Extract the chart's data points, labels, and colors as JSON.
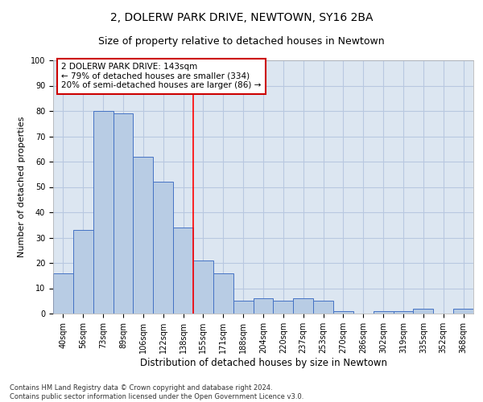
{
  "title": "2, DOLERW PARK DRIVE, NEWTOWN, SY16 2BA",
  "subtitle": "Size of property relative to detached houses in Newtown",
  "xlabel": "Distribution of detached houses by size in Newtown",
  "ylabel": "Number of detached properties",
  "categories": [
    "40sqm",
    "56sqm",
    "73sqm",
    "89sqm",
    "106sqm",
    "122sqm",
    "138sqm",
    "155sqm",
    "171sqm",
    "188sqm",
    "204sqm",
    "220sqm",
    "237sqm",
    "253sqm",
    "270sqm",
    "286sqm",
    "302sqm",
    "319sqm",
    "335sqm",
    "352sqm",
    "368sqm"
  ],
  "values": [
    16,
    33,
    80,
    79,
    62,
    52,
    34,
    21,
    16,
    5,
    6,
    5,
    6,
    5,
    1,
    0,
    1,
    1,
    2,
    0,
    2
  ],
  "bar_color": "#b8cce4",
  "bar_edge_color": "#4472c4",
  "property_line_x": 6.5,
  "annotation_line1": "2 DOLERW PARK DRIVE: 143sqm",
  "annotation_line2": "← 79% of detached houses are smaller (334)",
  "annotation_line3": "20% of semi-detached houses are larger (86) →",
  "annotation_box_color": "#cc0000",
  "ylim": [
    0,
    100
  ],
  "yticks": [
    0,
    10,
    20,
    30,
    40,
    50,
    60,
    70,
    80,
    90,
    100
  ],
  "grid_color": "#b8c8e0",
  "plot_bg_color": "#dce6f1",
  "footer_line1": "Contains HM Land Registry data © Crown copyright and database right 2024.",
  "footer_line2": "Contains public sector information licensed under the Open Government Licence v3.0.",
  "title_fontsize": 10,
  "subtitle_fontsize": 9,
  "xlabel_fontsize": 8.5,
  "ylabel_fontsize": 8,
  "tick_fontsize": 7,
  "annotation_fontsize": 7.5,
  "footer_fontsize": 6
}
